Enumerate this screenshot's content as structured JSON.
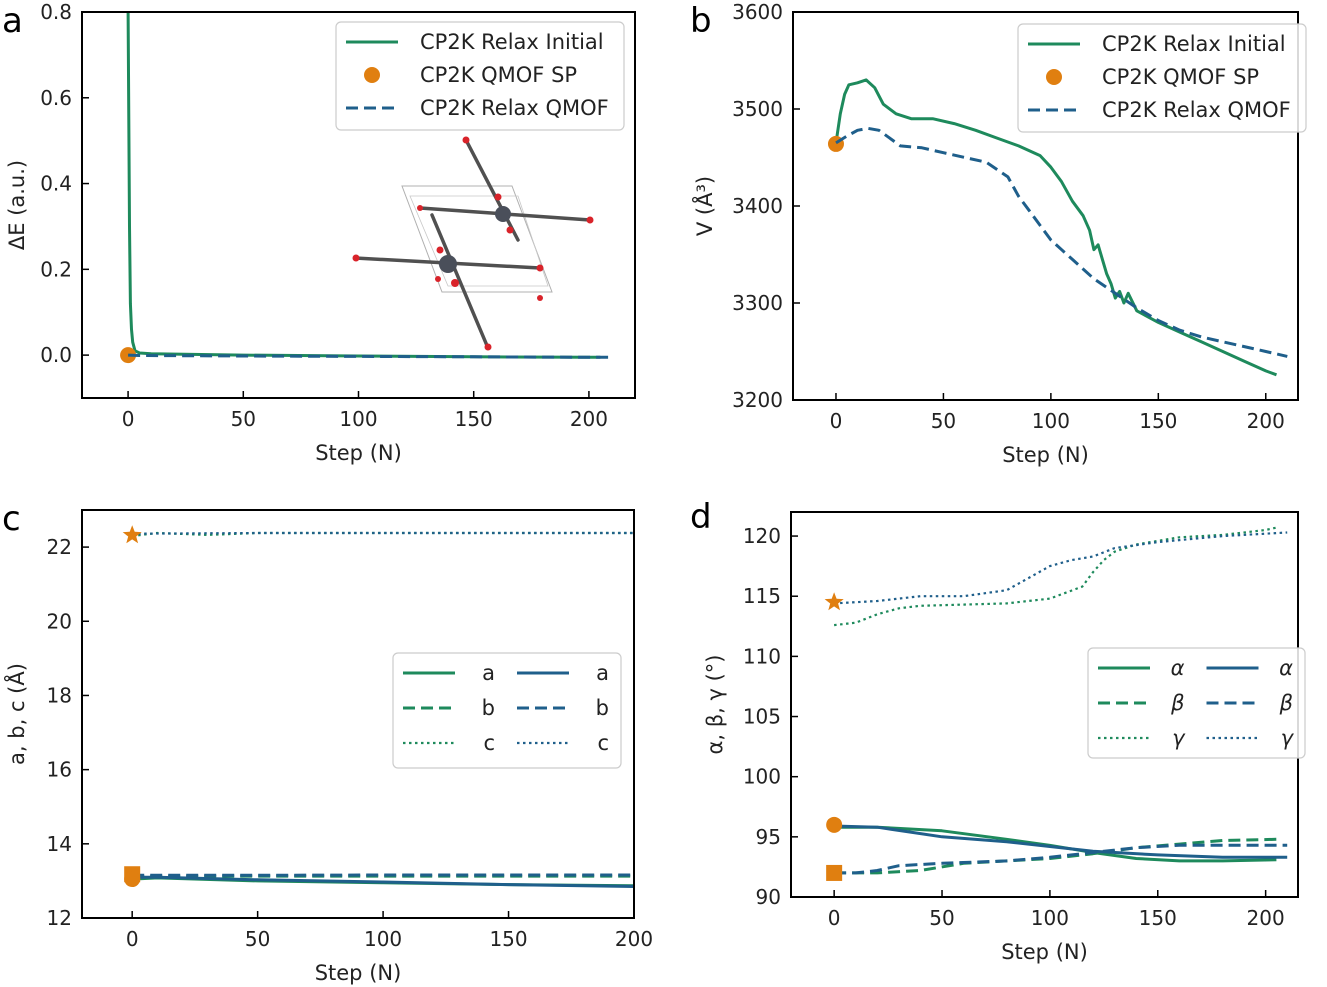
{
  "colors": {
    "green": "#1e8a5c",
    "blue": "#1f5f8b",
    "orange": "#e07f10",
    "axis": "#000000"
  },
  "chart_data": [
    {
      "panel": "a",
      "type": "line",
      "xlabel": "Step (N)",
      "ylabel": "ΔE (a.u.)",
      "xlim": [
        -20,
        220
      ],
      "ylim": [
        -0.1,
        0.8
      ],
      "xticks": [
        0,
        50,
        100,
        150,
        200
      ],
      "yticks": [
        0.0,
        0.2,
        0.4,
        0.6,
        0.8
      ],
      "ytick_labels": [
        "0.0",
        "0.2",
        "0.4",
        "0.6",
        "0.8"
      ],
      "legend": [
        "CP2K Relax Initial",
        "CP2K QMOF SP",
        "CP2K Relax QMOF"
      ],
      "legend_loc": "upper-right",
      "inset": "MOF crystal structure rendering",
      "series": [
        {
          "name": "CP2K Relax Initial",
          "style": "solid",
          "color": "green",
          "x": [
            0,
            0.3,
            0.6,
            1,
            1.5,
            2,
            3,
            5,
            10,
            50,
            100,
            150,
            200,
            205
          ],
          "y": [
            0.8,
            0.55,
            0.3,
            0.12,
            0.06,
            0.03,
            0.01,
            0.005,
            0.003,
            0.0,
            -0.002,
            -0.004,
            -0.005,
            -0.005
          ]
        },
        {
          "name": "CP2K QMOF SP",
          "style": "marker-circle",
          "color": "orange",
          "x": [
            0
          ],
          "y": [
            0.0
          ]
        },
        {
          "name": "CP2K Relax QMOF",
          "style": "dashed",
          "color": "blue",
          "x": [
            0,
            5,
            50,
            100,
            150,
            200,
            210
          ],
          "y": [
            0.0,
            -0.001,
            -0.002,
            -0.003,
            -0.004,
            -0.005,
            -0.005
          ]
        }
      ]
    },
    {
      "panel": "b",
      "type": "line",
      "xlabel": "Step (N)",
      "ylabel": "V (Å³)",
      "xlim": [
        -20,
        215
      ],
      "ylim": [
        3200,
        3600
      ],
      "xticks": [
        0,
        50,
        100,
        150,
        200
      ],
      "yticks": [
        3200,
        3300,
        3400,
        3500,
        3600
      ],
      "ytick_labels": [
        "3200",
        "3300",
        "3400",
        "3500",
        "3600"
      ],
      "legend": [
        "CP2K Relax Initial",
        "CP2K QMOF SP",
        "CP2K Relax QMOF"
      ],
      "legend_loc": "upper-right",
      "series": [
        {
          "name": "CP2K Relax Initial",
          "style": "solid",
          "color": "green",
          "x": [
            0,
            2,
            4,
            6,
            10,
            14,
            18,
            22,
            28,
            35,
            45,
            55,
            65,
            75,
            85,
            95,
            100,
            105,
            110,
            115,
            118,
            120,
            122,
            124,
            126,
            128,
            130,
            132,
            134,
            136,
            140,
            150,
            160,
            170,
            180,
            190,
            200,
            205
          ],
          "y": [
            3465,
            3495,
            3515,
            3525,
            3527,
            3530,
            3522,
            3505,
            3495,
            3490,
            3490,
            3485,
            3478,
            3470,
            3462,
            3452,
            3440,
            3425,
            3405,
            3390,
            3375,
            3355,
            3360,
            3345,
            3330,
            3320,
            3305,
            3312,
            3300,
            3310,
            3292,
            3280,
            3270,
            3260,
            3250,
            3240,
            3230,
            3226
          ]
        },
        {
          "name": "CP2K QMOF SP",
          "style": "marker-circle",
          "color": "orange",
          "x": [
            0
          ],
          "y": [
            3464
          ]
        },
        {
          "name": "CP2K Relax QMOF",
          "style": "dashed",
          "color": "blue",
          "x": [
            0,
            5,
            10,
            15,
            20,
            25,
            30,
            40,
            50,
            60,
            70,
            80,
            85,
            90,
            95,
            100,
            105,
            110,
            120,
            130,
            140,
            150,
            160,
            170,
            180,
            190,
            200,
            210
          ],
          "y": [
            3465,
            3472,
            3478,
            3480,
            3478,
            3470,
            3462,
            3460,
            3455,
            3450,
            3445,
            3430,
            3410,
            3395,
            3380,
            3365,
            3355,
            3345,
            3325,
            3310,
            3295,
            3282,
            3272,
            3265,
            3260,
            3255,
            3250,
            3245
          ]
        }
      ]
    },
    {
      "panel": "c",
      "type": "line",
      "xlabel": "Step (N)",
      "ylabel": "a, b, c (Å)",
      "xlim": [
        -20,
        200
      ],
      "ylim": [
        12,
        23
      ],
      "xticks": [
        0,
        50,
        100,
        150,
        200
      ],
      "yticks": [
        12,
        14,
        16,
        18,
        20,
        22
      ],
      "ytick_labels": [
        "12",
        "14",
        "16",
        "18",
        "20",
        "22"
      ],
      "legend": [
        "a",
        "b",
        "c",
        "a",
        "b",
        "c"
      ],
      "legend_loc": "center-right",
      "series": [
        {
          "name": "a",
          "group": "CP2K Relax Initial",
          "style": "solid",
          "color": "green",
          "x": [
            0,
            10,
            50,
            100,
            150,
            200
          ],
          "y": [
            13.05,
            13.08,
            13.0,
            12.95,
            12.9,
            12.87
          ]
        },
        {
          "name": "b",
          "group": "CP2K Relax Initial",
          "style": "dashed",
          "color": "green",
          "x": [
            0,
            50,
            100,
            150,
            200
          ],
          "y": [
            13.12,
            13.13,
            13.13,
            13.13,
            13.13
          ]
        },
        {
          "name": "c",
          "group": "CP2K Relax Initial",
          "style": "dotted",
          "color": "green",
          "x": [
            0,
            10,
            30,
            50,
            100,
            150,
            200
          ],
          "y": [
            22.3,
            22.38,
            22.33,
            22.38,
            22.38,
            22.38,
            22.38
          ]
        },
        {
          "name": "a",
          "group": "CP2K Relax QMOF",
          "style": "solid",
          "color": "blue",
          "x": [
            0,
            10,
            50,
            100,
            150,
            200
          ],
          "y": [
            13.1,
            13.1,
            13.03,
            12.97,
            12.9,
            12.85
          ]
        },
        {
          "name": "b",
          "group": "CP2K Relax QMOF",
          "style": "dashed",
          "color": "blue",
          "x": [
            0,
            50,
            100,
            150,
            200
          ],
          "y": [
            13.15,
            13.15,
            13.16,
            13.16,
            13.16
          ]
        },
        {
          "name": "c",
          "group": "CP2K Relax QMOF",
          "style": "dotted",
          "color": "blue",
          "x": [
            0,
            50,
            100,
            150,
            200
          ],
          "y": [
            22.36,
            22.38,
            22.38,
            22.38,
            22.38
          ]
        }
      ],
      "markers": [
        {
          "shape": "star",
          "color": "orange",
          "x": 0,
          "y": 22.32
        },
        {
          "shape": "square",
          "color": "orange",
          "x": 0,
          "y": 13.18
        },
        {
          "shape": "circle",
          "color": "orange",
          "x": 0,
          "y": 13.05
        }
      ]
    },
    {
      "panel": "d",
      "type": "line",
      "xlabel": "Step (N)",
      "ylabel": "α, β, γ (°)",
      "xlim": [
        -20,
        215
      ],
      "ylim": [
        90,
        122
      ],
      "xticks": [
        0,
        50,
        100,
        150,
        200
      ],
      "yticks": [
        90,
        95,
        100,
        105,
        110,
        115,
        120
      ],
      "ytick_labels": [
        "90",
        "95",
        "100",
        "105",
        "110",
        "115",
        "120"
      ],
      "legend": [
        "α",
        "β",
        "γ",
        "α",
        "β",
        "γ"
      ],
      "legend_loc": "center-right",
      "series": [
        {
          "name": "α",
          "group": "CP2K Relax Initial",
          "style": "solid",
          "color": "green",
          "x": [
            0,
            20,
            50,
            80,
            100,
            120,
            140,
            160,
            180,
            205
          ],
          "y": [
            95.8,
            95.8,
            95.5,
            94.8,
            94.3,
            93.7,
            93.2,
            93.0,
            93.0,
            93.1
          ]
        },
        {
          "name": "β",
          "group": "CP2K Relax Initial",
          "style": "dashed",
          "color": "green",
          "x": [
            0,
            20,
            40,
            60,
            80,
            100,
            120,
            140,
            160,
            180,
            205
          ],
          "y": [
            92.0,
            92.0,
            92.2,
            92.8,
            93.0,
            93.2,
            93.6,
            94.1,
            94.4,
            94.7,
            94.8
          ]
        },
        {
          "name": "γ",
          "group": "CP2K Relax Initial",
          "style": "dotted",
          "color": "green",
          "x": [
            0,
            10,
            20,
            30,
            40,
            60,
            80,
            100,
            115,
            120,
            125,
            130,
            140,
            150,
            160,
            170,
            180,
            190,
            200,
            205
          ],
          "y": [
            112.6,
            112.8,
            113.5,
            114.0,
            114.2,
            114.3,
            114.4,
            114.8,
            115.8,
            117.0,
            118.0,
            118.7,
            119.3,
            119.6,
            119.9,
            120.0,
            120.1,
            120.3,
            120.5,
            120.7
          ]
        },
        {
          "name": "α",
          "group": "CP2K Relax QMOF",
          "style": "solid",
          "color": "blue",
          "x": [
            0,
            20,
            50,
            80,
            100,
            120,
            150,
            180,
            210
          ],
          "y": [
            95.9,
            95.8,
            95.0,
            94.6,
            94.2,
            93.8,
            93.5,
            93.3,
            93.3
          ]
        },
        {
          "name": "β",
          "group": "CP2K Relax QMOF",
          "style": "dashed",
          "color": "blue",
          "x": [
            0,
            10,
            20,
            30,
            50,
            80,
            100,
            120,
            140,
            160,
            180,
            210
          ],
          "y": [
            92.0,
            92.0,
            92.2,
            92.6,
            92.8,
            93.0,
            93.3,
            93.7,
            94.1,
            94.3,
            94.3,
            94.3
          ]
        },
        {
          "name": "γ",
          "group": "CP2K Relax QMOF",
          "style": "dotted",
          "color": "blue",
          "x": [
            0,
            20,
            40,
            60,
            80,
            90,
            100,
            110,
            120,
            130,
            150,
            180,
            200,
            210
          ],
          "y": [
            114.4,
            114.6,
            115.0,
            115.0,
            115.5,
            116.5,
            117.5,
            118.0,
            118.3,
            119.0,
            119.5,
            120.0,
            120.2,
            120.3
          ]
        }
      ],
      "markers": [
        {
          "shape": "star",
          "color": "orange",
          "x": 0,
          "y": 114.5
        },
        {
          "shape": "circle",
          "color": "orange",
          "x": 0,
          "y": 96.0
        },
        {
          "shape": "square",
          "color": "orange",
          "x": 0,
          "y": 92.0
        }
      ]
    }
  ]
}
